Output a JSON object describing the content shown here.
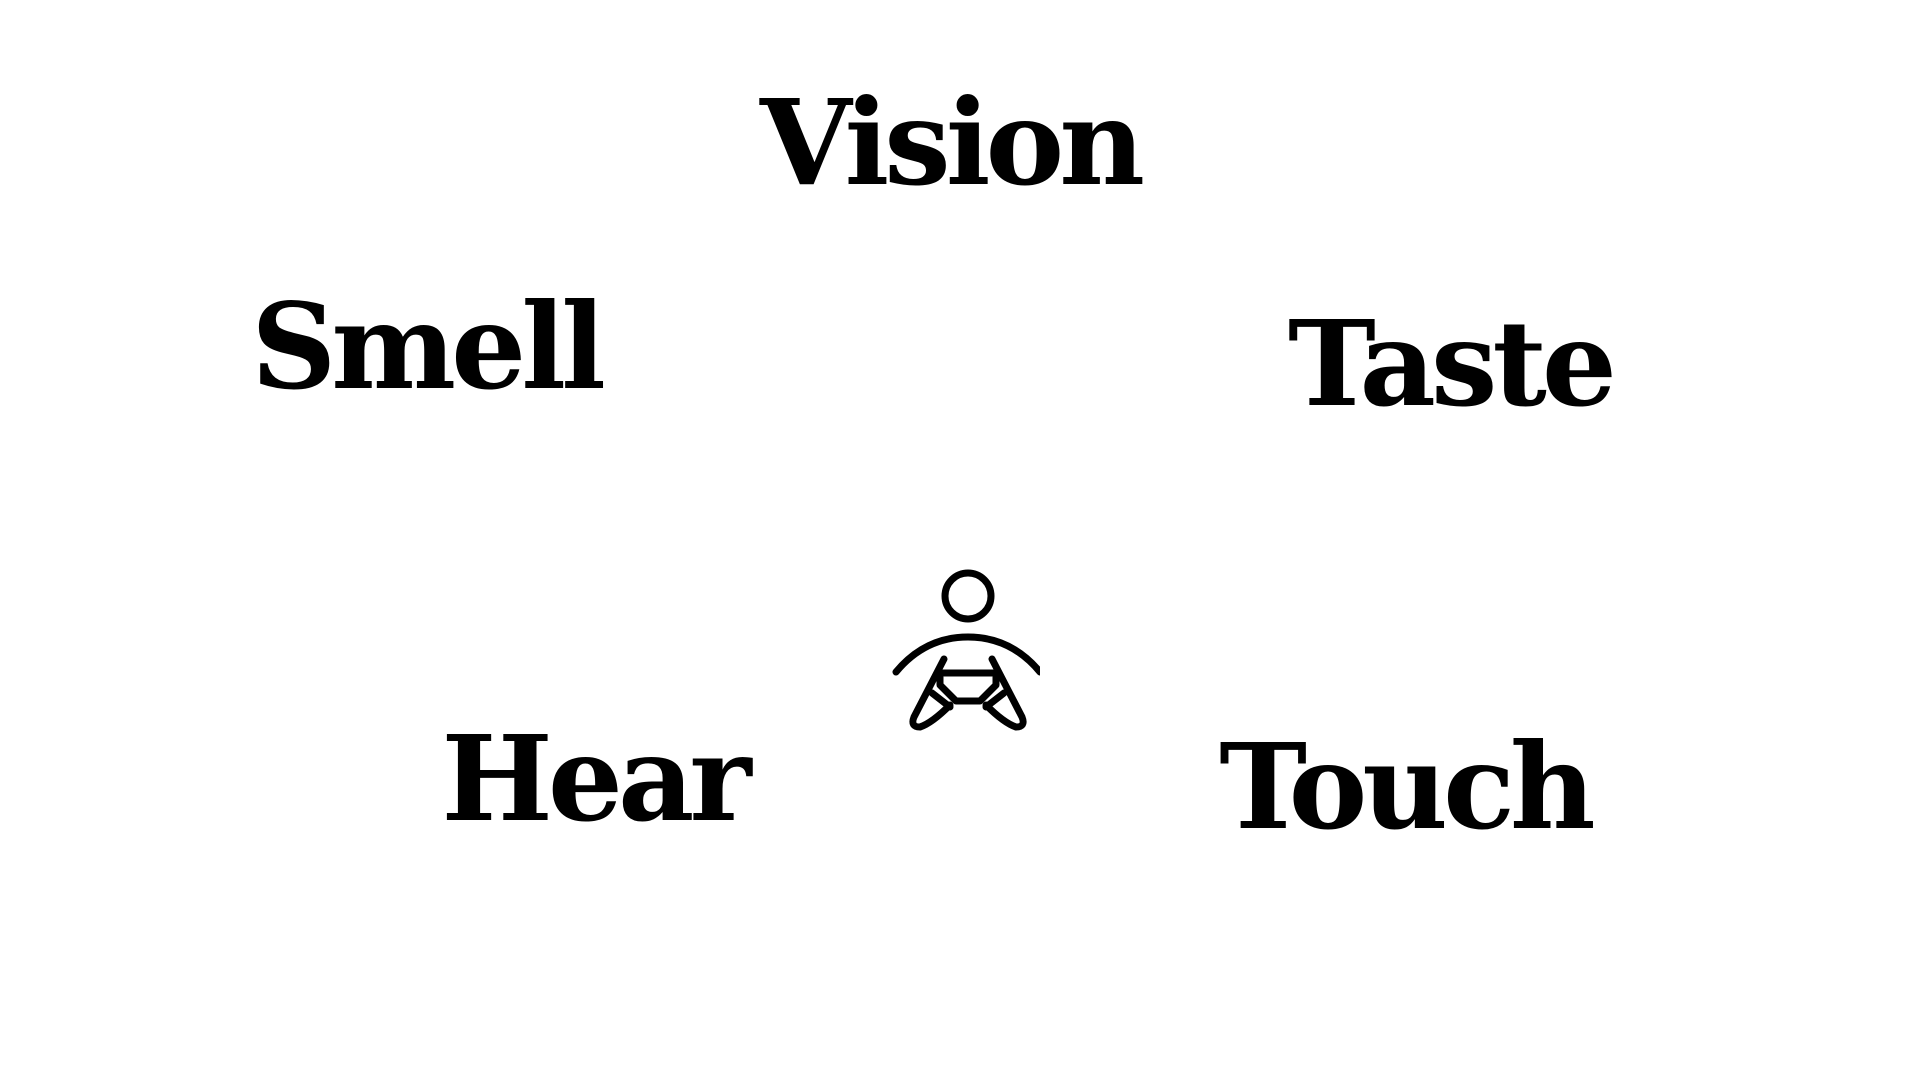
{
  "senses": {
    "vision": "Vision",
    "smell": "Smell",
    "taste": "Taste",
    "hear": "Hear",
    "touch": "Touch"
  },
  "center_icon": "meditating-person-icon",
  "colors": {
    "text": "#000000",
    "background": "#ffffff"
  }
}
